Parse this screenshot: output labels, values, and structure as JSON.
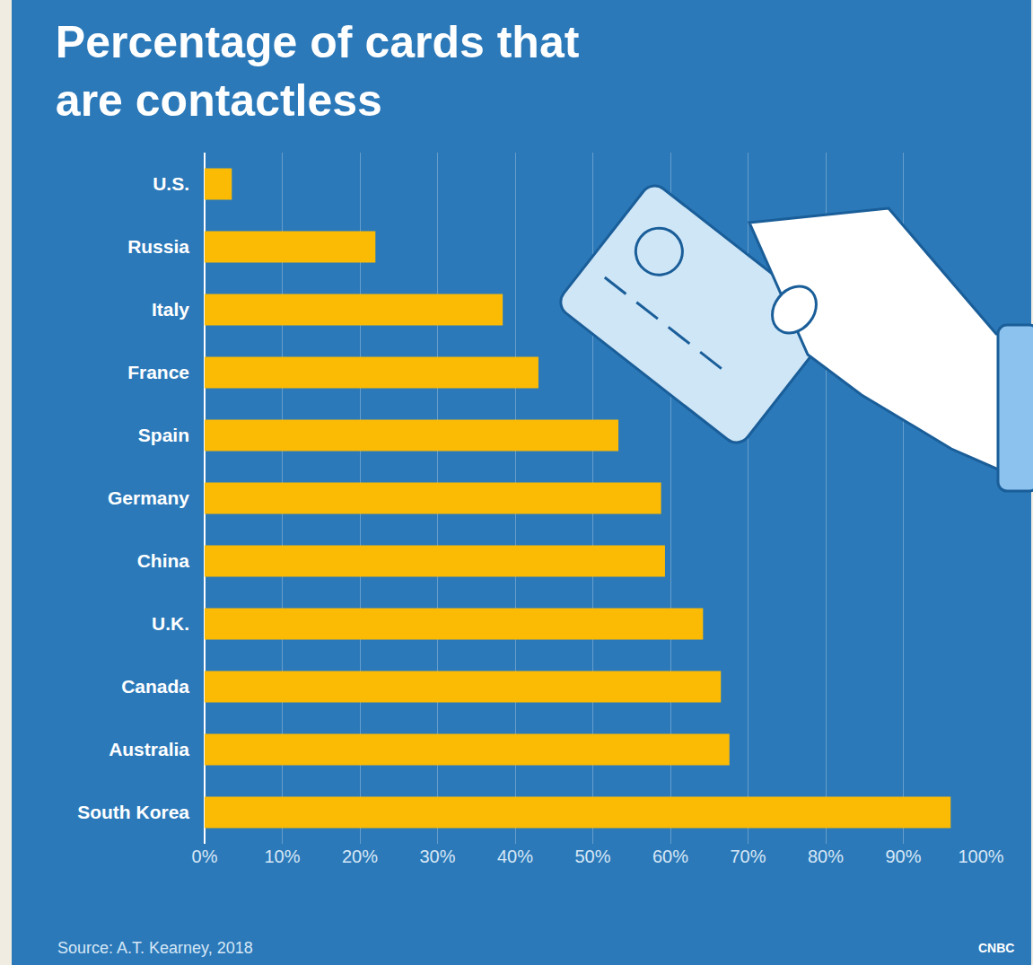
{
  "chart_data": {
    "type": "bar",
    "orientation": "horizontal",
    "title": "Percentage of cards that are contactless",
    "categories": [
      "U.S.",
      "Russia",
      "Italy",
      "France",
      "Spain",
      "Germany",
      "China",
      "U.K.",
      "Canada",
      "Australia",
      "South Korea"
    ],
    "values": [
      3.5,
      22,
      38.4,
      43,
      53.3,
      58.8,
      59.3,
      64.2,
      66.5,
      67.6,
      96.1
    ],
    "color": "#fbbb05",
    "xlim": [
      0,
      100
    ],
    "xticks": [
      {
        "value": 0,
        "label": "0%"
      },
      {
        "value": 10,
        "label": "10%"
      },
      {
        "value": 20,
        "label": "20%"
      },
      {
        "value": 30,
        "label": "30%"
      },
      {
        "value": 40,
        "label": "40%"
      },
      {
        "value": 50,
        "label": "50%"
      },
      {
        "value": 60,
        "label": "60%"
      },
      {
        "value": 70,
        "label": "70%"
      },
      {
        "value": 80,
        "label": "80%"
      },
      {
        "value": 90,
        "label": "90%"
      },
      {
        "value": 100,
        "label": "100%"
      }
    ],
    "grid": true,
    "annotations": [
      "Source: A.T. Kearney, 2018",
      "CNBC"
    ]
  }
}
